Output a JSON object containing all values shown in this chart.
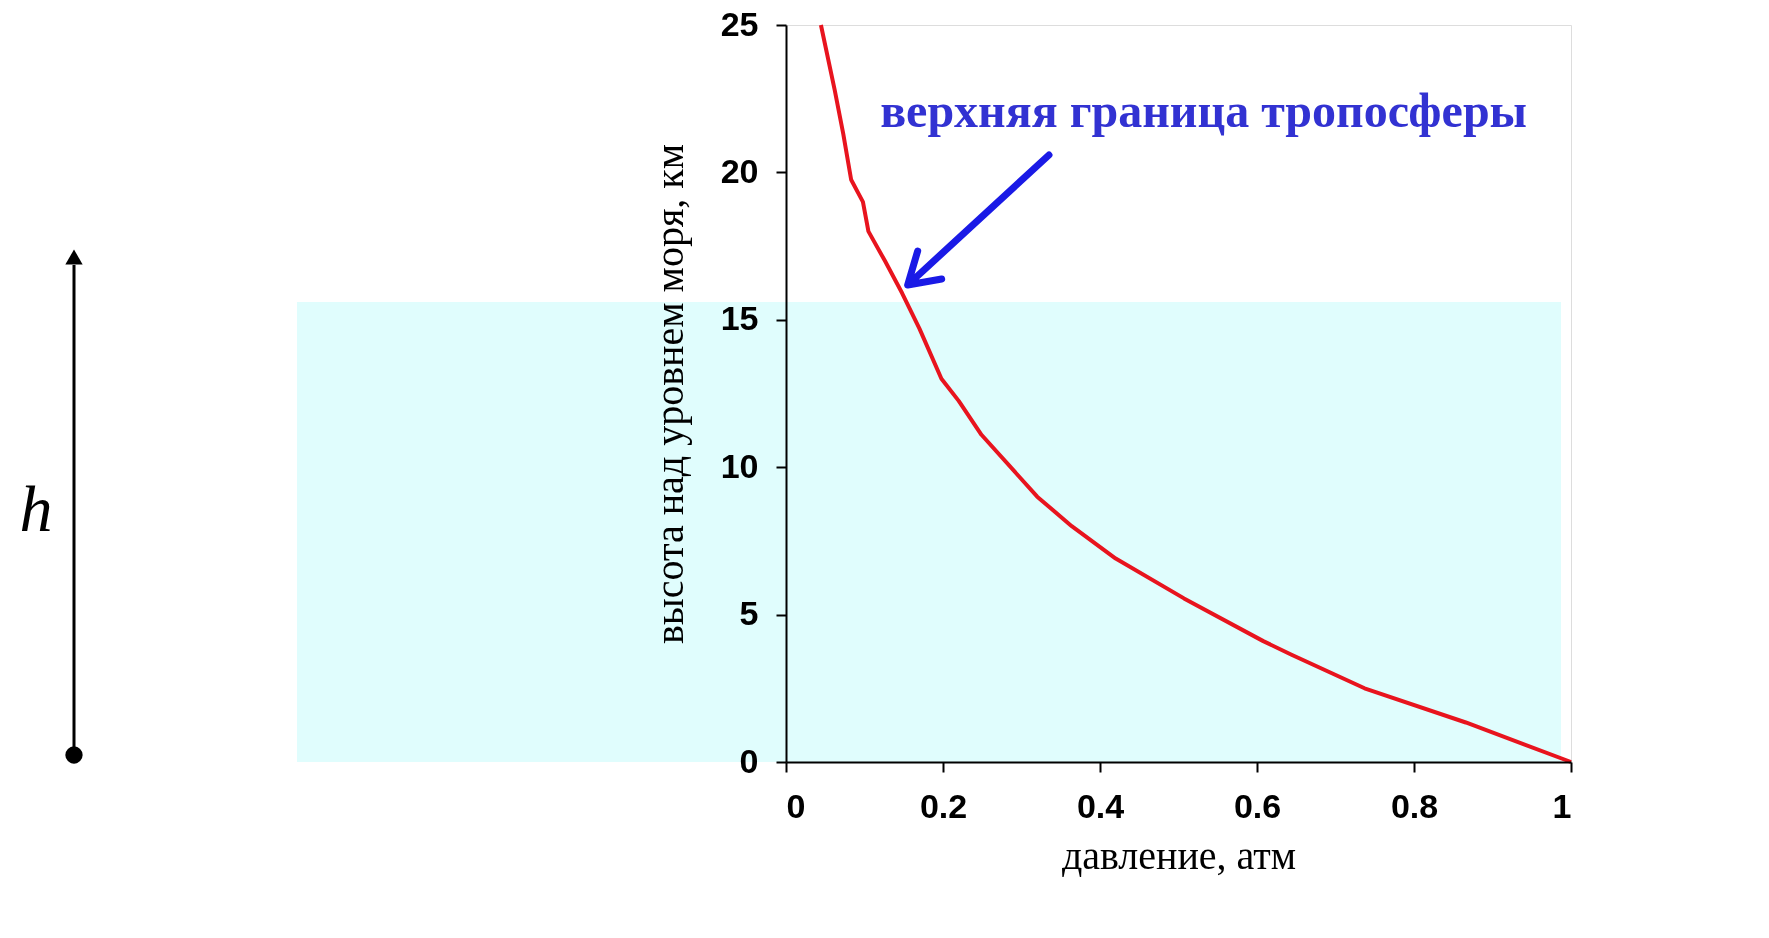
{
  "chart_data": {
    "type": "line",
    "xlabel": "давление, атм",
    "ylabel": "высота над уровнем моря, км",
    "x": [
      0.0445,
      0.062,
      0.073,
      0.083,
      0.098,
      0.105,
      0.126,
      0.148,
      0.17,
      0.198,
      0.22,
      0.249,
      0.32,
      0.364,
      0.42,
      0.507,
      0.608,
      0.644,
      0.737,
      0.866,
      1
    ],
    "series": [
      {
        "color": "#e8141e",
        "values": [
          25,
          22.8,
          21.3,
          19.75,
          19.0,
          18.0,
          17.0,
          15.9,
          14.7,
          13.0,
          12.25,
          11.1,
          9.0,
          8.0,
          6.9,
          5.55,
          4.1,
          3.64,
          2.5,
          1.34,
          0
        ]
      }
    ],
    "xlim": [
      0,
      1
    ],
    "ylim": [
      0,
      25
    ],
    "xticks": [
      0,
      0.2,
      0.4,
      0.6,
      0.8,
      1
    ],
    "yticks": [
      0,
      5,
      10,
      15,
      20,
      25
    ],
    "bands": [
      {
        "axis": "y",
        "from": 0,
        "to": 15.6,
        "color": "#e0fdfd"
      }
    ],
    "annotations": [
      "верхняя граница тропосферы",
      "h"
    ],
    "grid": false,
    "marker": "none",
    "line_style": "solid"
  }
}
